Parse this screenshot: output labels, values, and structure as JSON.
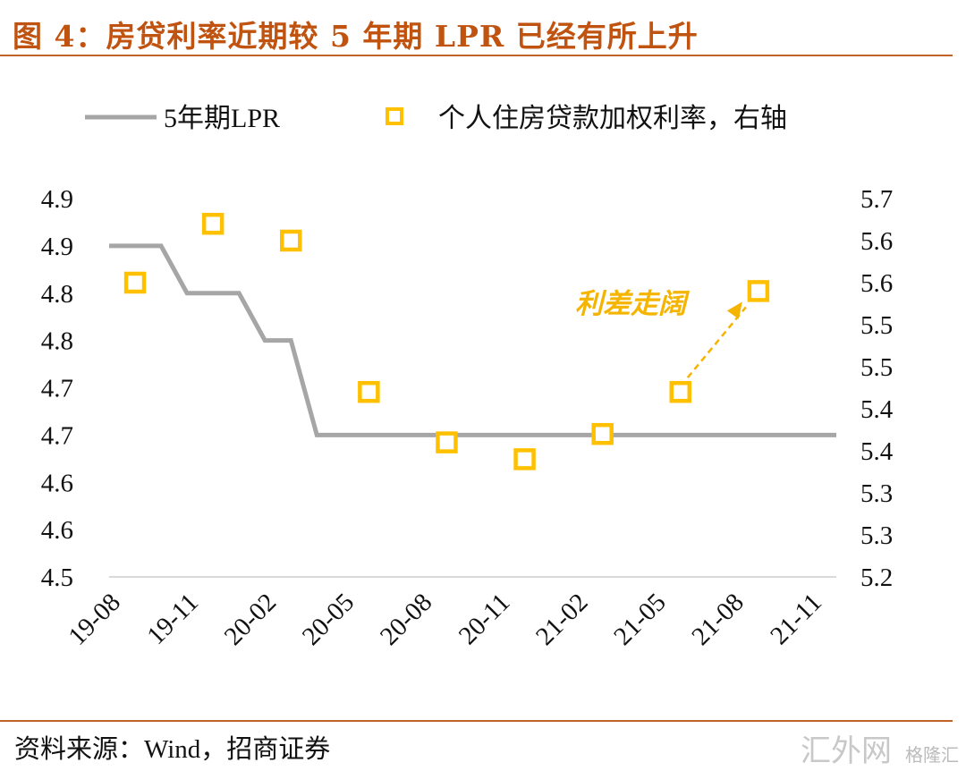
{
  "title": "图 4：房贷利率近期较 5 年期 LPR 已经有所上升",
  "source": "资料来源：Wind，招商证券",
  "watermark": [
    "汇外网",
    "格隆汇"
  ],
  "colors": {
    "lpr": "#A6A6A6",
    "mortgage": "#FFC000",
    "annotation": "#F5B400",
    "accent": "#C0530F"
  },
  "chart_data": {
    "type": "line",
    "title": "房贷利率近期较 5 年期 LPR 已经有所上升",
    "legend_position": "top",
    "grid": false,
    "x_tick_labels": [
      "19-08",
      "19-11",
      "20-02",
      "20-05",
      "20-08",
      "20-11",
      "21-02",
      "21-05",
      "21-08",
      "21-11"
    ],
    "x": [
      "19-08",
      "19-09",
      "19-10",
      "19-11",
      "19-12",
      "20-01",
      "20-02",
      "20-03",
      "20-04",
      "20-05",
      "20-06",
      "20-07",
      "20-08",
      "20-09",
      "20-10",
      "20-11",
      "20-12",
      "21-01",
      "21-02",
      "21-03",
      "21-04",
      "21-05",
      "21-06",
      "21-07",
      "21-08",
      "21-09",
      "21-10",
      "21-11",
      "21-12"
    ],
    "left_axis": {
      "ylim": [
        4.5,
        4.9
      ],
      "tick_values": [
        4.9,
        4.85,
        4.8,
        4.75,
        4.7,
        4.65,
        4.6,
        4.55,
        4.5
      ],
      "tick_labels": [
        "4.9",
        "4.9",
        "4.8",
        "4.8",
        "4.7",
        "4.7",
        "4.6",
        "4.6",
        "4.5"
      ]
    },
    "right_axis": {
      "ylim": [
        5.25,
        5.7
      ],
      "tick_values": [
        5.7,
        5.65,
        5.6,
        5.55,
        5.5,
        5.45,
        5.4,
        5.35,
        5.3,
        5.25
      ],
      "tick_labels": [
        "5.7",
        "5.6",
        "5.6",
        "5.5",
        "5.5",
        "5.4",
        "5.4",
        "5.3",
        "5.3",
        "5.2"
      ]
    },
    "series": [
      {
        "name": "5年期LPR",
        "axis": "left",
        "style": "line",
        "values": [
          4.85,
          4.85,
          4.85,
          4.8,
          4.8,
          4.8,
          4.75,
          4.75,
          4.65,
          4.65,
          4.65,
          4.65,
          4.65,
          4.65,
          4.65,
          4.65,
          4.65,
          4.65,
          4.65,
          4.65,
          4.65,
          4.65,
          4.65,
          4.65,
          4.65,
          4.65,
          4.65,
          4.65,
          4.65
        ]
      },
      {
        "name": "个人住房贷款加权利率，右轴",
        "axis": "right",
        "style": "square-marker",
        "x": [
          "19-09",
          "19-12",
          "20-03",
          "20-06",
          "20-09",
          "20-12",
          "21-03",
          "21-06",
          "21-09"
        ],
        "values": [
          5.6,
          5.67,
          5.65,
          5.47,
          5.41,
          5.39,
          5.42,
          5.47,
          5.59
        ]
      }
    ],
    "annotations": [
      {
        "text": "利差走阔",
        "arrow_from": "21-06",
        "arrow_to": "21-09"
      }
    ]
  }
}
